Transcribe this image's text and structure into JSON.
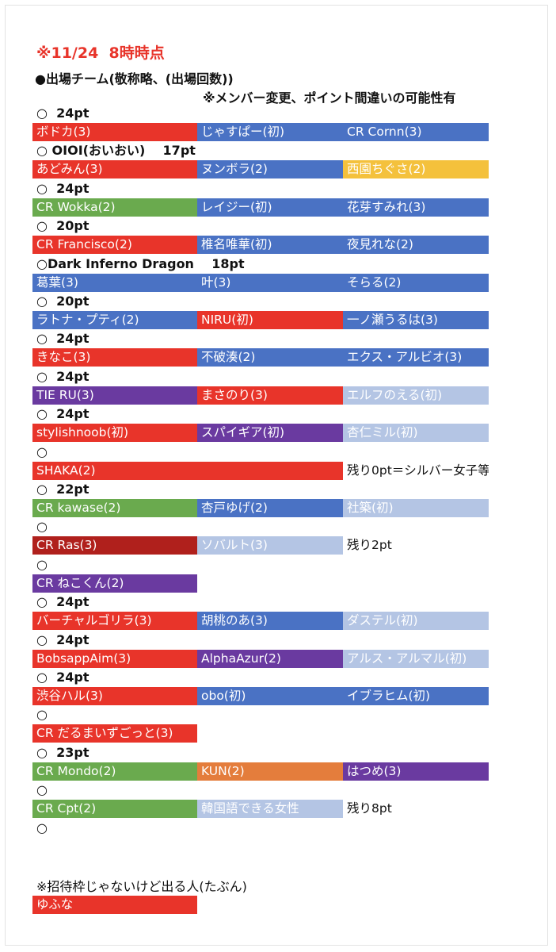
{
  "colors": {
    "red": "#e8342a",
    "blue": "#4a72c4",
    "yellow": "#f4c13c",
    "green": "#6aaa4e",
    "purple": "#6a3aa0",
    "lightblue": "#b4c5e4",
    "darkred": "#b0201c",
    "orange": "#e47d3c"
  },
  "title": "※11/24  8時時点",
  "heading": "●出場チーム(敬称略、(出場回数))",
  "disclaimer": "※メンバー変更、ポイント間違いの可能性有",
  "teams": [
    {
      "header": "○  24pt",
      "members": [
        {
          "name": "ボドカ(3)",
          "color": "red"
        },
        {
          "name": "じゃすぱー(初)",
          "color": "blue"
        },
        {
          "name": "CR Cornn(3)",
          "color": "blue"
        }
      ]
    },
    {
      "header": "○ OIOI(おいおい)    17pt",
      "members": [
        {
          "name": "あどみん(3)",
          "color": "red"
        },
        {
          "name": "ヌンボラ(2)",
          "color": "blue"
        },
        {
          "name": "西園ちぐさ(2)",
          "color": "yellow"
        }
      ]
    },
    {
      "header": "○  24pt",
      "members": [
        {
          "name": "CR Wokka(2)",
          "color": "green"
        },
        {
          "name": "レイジー(初)",
          "color": "blue"
        },
        {
          "name": "花芽すみれ(3)",
          "color": "blue"
        }
      ]
    },
    {
      "header": "○  20pt",
      "members": [
        {
          "name": "CR Francisco(2)",
          "color": "red"
        },
        {
          "name": "椎名唯華(初)",
          "color": "blue"
        },
        {
          "name": "夜見れな(2)",
          "color": "blue"
        }
      ]
    },
    {
      "header": "○Dark Inferno Dragon    18pt",
      "members": [
        {
          "name": "葛葉(3)",
          "color": "blue"
        },
        {
          "name": "叶(3)",
          "color": "blue"
        },
        {
          "name": "そらる(2)",
          "color": "blue"
        }
      ]
    },
    {
      "header": "○  20pt",
      "members": [
        {
          "name": "ラトナ・プティ(2)",
          "color": "blue"
        },
        {
          "name": "NIRU(初)",
          "color": "red"
        },
        {
          "name": "一ノ瀬うるは(3)",
          "color": "blue"
        }
      ]
    },
    {
      "header": "○  24pt",
      "members": [
        {
          "name": "きなこ(3)",
          "color": "red"
        },
        {
          "name": "不破湊(2)",
          "color": "blue"
        },
        {
          "name": "エクス・アルビオ(3)",
          "color": "blue"
        }
      ]
    },
    {
      "header": "○  24pt",
      "members": [
        {
          "name": "TIE RU(3)",
          "color": "purple"
        },
        {
          "name": "まさのり(3)",
          "color": "red"
        },
        {
          "name": "エルフのえる(初)",
          "color": "lightblue"
        }
      ]
    },
    {
      "header": "○  24pt",
      "members": [
        {
          "name": "stylishnoob(初)",
          "color": "red"
        },
        {
          "name": "スパイギア(初)",
          "color": "purple"
        },
        {
          "name": "杏仁ミル(初)",
          "color": "lightblue"
        }
      ]
    },
    {
      "header": "○",
      "members": [
        {
          "name": "SHAKA(2)",
          "color": "red",
          "wide": true
        },
        {
          "name": "残り0pt＝シルバー女子等",
          "color": "none"
        }
      ]
    },
    {
      "header": "○  22pt",
      "members": [
        {
          "name": "CR kawase(2)",
          "color": "green"
        },
        {
          "name": "杏戸ゆげ(2)",
          "color": "blue"
        },
        {
          "name": "社築(初)",
          "color": "lightblue"
        }
      ]
    },
    {
      "header": "○",
      "members": [
        {
          "name": "CR Ras(3)",
          "color": "darkred"
        },
        {
          "name": "ソバルト(3)",
          "color": "lightblue"
        },
        {
          "name": "残り2pt",
          "color": "none"
        }
      ]
    },
    {
      "header": "○",
      "members": [
        {
          "name": "CR ねこくん(2)",
          "color": "purple"
        }
      ]
    },
    {
      "header": "○  24pt",
      "members": [
        {
          "name": "バーチャルゴリラ(3)",
          "color": "red"
        },
        {
          "name": "胡桃のあ(3)",
          "color": "blue"
        },
        {
          "name": "ダステル(初)",
          "color": "lightblue"
        }
      ]
    },
    {
      "header": "○  24pt",
      "members": [
        {
          "name": "BobsappAim(3)",
          "color": "red"
        },
        {
          "name": "AlphaAzur(2)",
          "color": "purple"
        },
        {
          "name": "アルス・アルマル(初)",
          "color": "lightblue"
        }
      ]
    },
    {
      "header": "○  24pt",
      "members": [
        {
          "name": "渋谷ハル(3)",
          "color": "red"
        },
        {
          "name": "obo(初)",
          "color": "blue"
        },
        {
          "name": "イブラヒム(初)",
          "color": "blue"
        }
      ]
    },
    {
      "header": "○",
      "members": [
        {
          "name": "CR だるまいずごっと(3)",
          "color": "red"
        }
      ]
    },
    {
      "header": "○  23pt",
      "members": [
        {
          "name": "CR Mondo(2)",
          "color": "green"
        },
        {
          "name": "KUN(2)",
          "color": "orange"
        },
        {
          "name": "はつめ(3)",
          "color": "purple"
        }
      ]
    },
    {
      "header": "○",
      "members": [
        {
          "name": "CR Cpt(2)",
          "color": "green"
        },
        {
          "name": "韓国語できる女性",
          "color": "lightblue"
        },
        {
          "name": "残り8pt",
          "color": "none"
        }
      ]
    },
    {
      "header": "○",
      "members": []
    }
  ],
  "note": "※招待枠じゃないけど出る人(たぶん)",
  "extra": {
    "name": "ゆふな",
    "color": "red"
  }
}
